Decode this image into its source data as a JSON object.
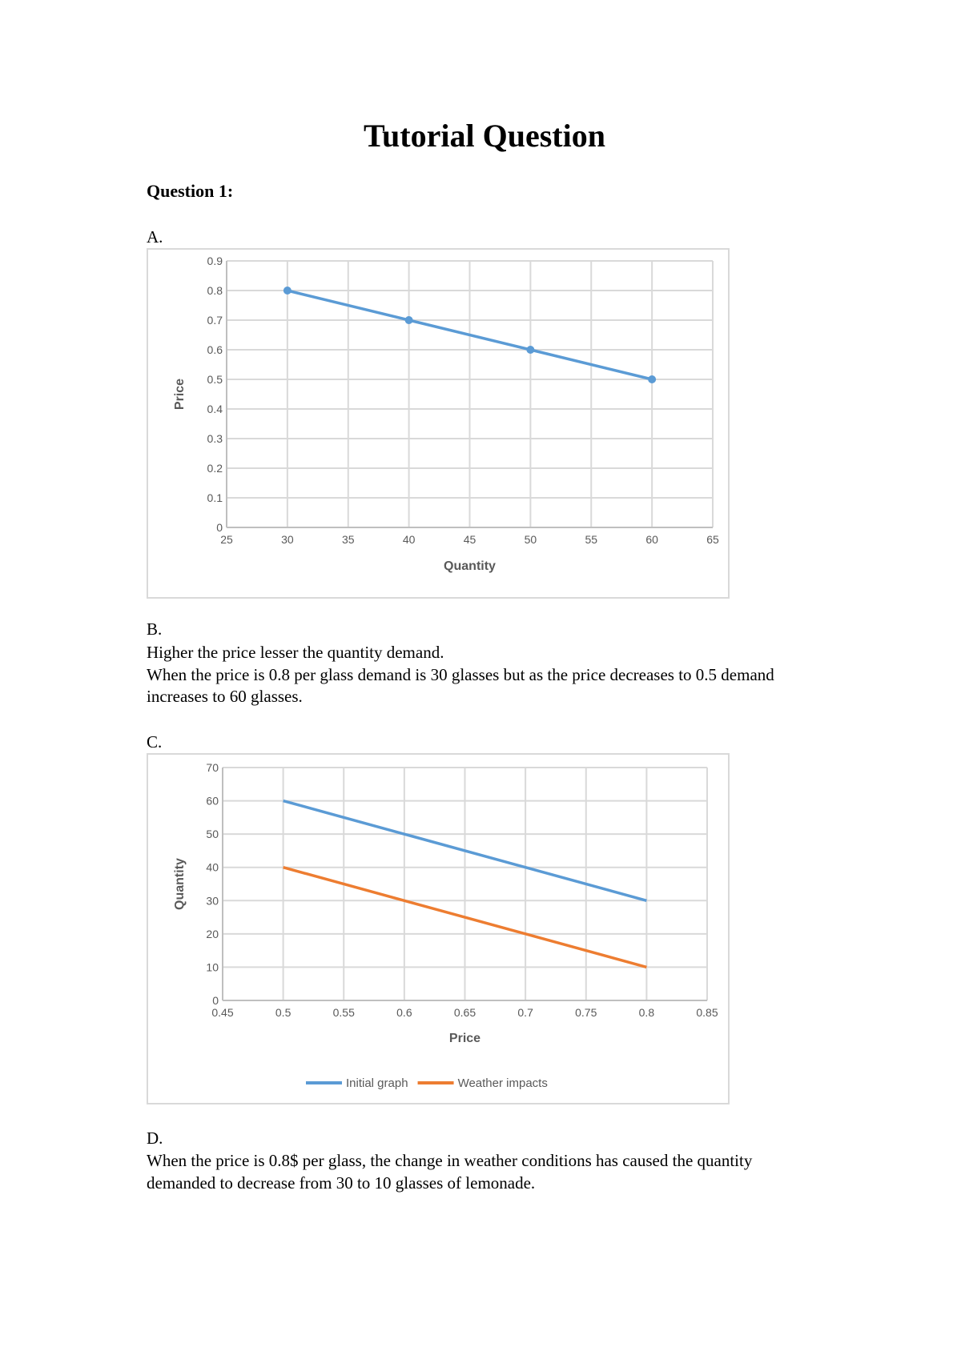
{
  "title": "Tutorial Question",
  "question_heading": "Question 1:",
  "part_a": {
    "label": "A."
  },
  "part_b": {
    "label": "B.",
    "lines": [
      "Higher the price lesser the quantity demand.",
      "When the price is 0.8 per glass demand is 30 glasses but as the price decreases to 0.5 demand increases to 60 glasses."
    ]
  },
  "part_c": {
    "label": "C."
  },
  "part_d": {
    "label": "D.",
    "text": "When the price is 0.8$ per glass, the change in weather conditions has caused the quantity demanded to decrease from 30 to 10 glasses of lemonade."
  },
  "chart_data": [
    {
      "type": "line",
      "title": "",
      "xlabel": "Quantity",
      "ylabel": "Price",
      "xlim": [
        25,
        65
      ],
      "ylim": [
        0,
        0.9
      ],
      "xticks": [
        "25",
        "30",
        "35",
        "40",
        "45",
        "50",
        "55",
        "60",
        "65"
      ],
      "yticks": [
        "0",
        "0.1",
        "0.2",
        "0.3",
        "0.4",
        "0.5",
        "0.6",
        "0.7",
        "0.8",
        "0.9"
      ],
      "grid": true,
      "markers": true,
      "series": [
        {
          "x": [
            30,
            40,
            50,
            60
          ],
          "y": [
            0.8,
            0.7,
            0.6,
            0.5
          ],
          "color": "#5b9bd5"
        }
      ]
    },
    {
      "type": "line",
      "title": "",
      "xlabel": "Price",
      "ylabel": "Quantity",
      "xlim": [
        0.45,
        0.85
      ],
      "ylim": [
        0,
        70
      ],
      "xticks": [
        "0.45",
        "0.5",
        "0.55",
        "0.6",
        "0.65",
        "0.7",
        "0.75",
        "0.8",
        "0.85"
      ],
      "yticks": [
        "0",
        "10",
        "20",
        "30",
        "40",
        "50",
        "60",
        "70"
      ],
      "grid": true,
      "markers": false,
      "legend": "bottom",
      "series": [
        {
          "name": "Initial graph",
          "x": [
            0.5,
            0.6,
            0.7,
            0.8
          ],
          "y": [
            60,
            50,
            40,
            30
          ],
          "color": "#5b9bd5"
        },
        {
          "name": "Weather impacts",
          "x": [
            0.5,
            0.6,
            0.7,
            0.8
          ],
          "y": [
            40,
            30,
            20,
            10
          ],
          "color": "#ed7d31"
        }
      ]
    }
  ]
}
